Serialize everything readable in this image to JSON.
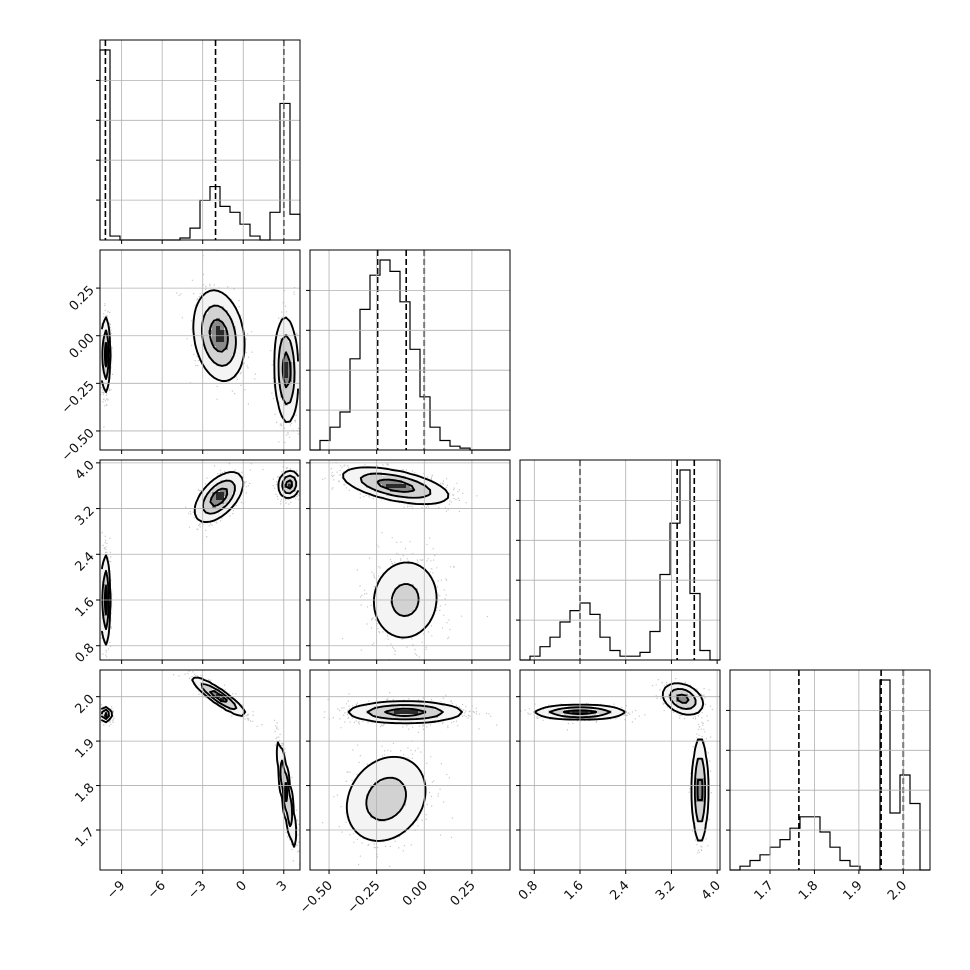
{
  "chart_data": {
    "type": "corner",
    "parameters": [
      {
        "name": "",
        "range": [
          -10.6,
          4.2
        ],
        "ticks": [
          -9,
          -6,
          -3,
          0,
          3
        ],
        "tick_labels": [
          "−9",
          "−6",
          "−3",
          "0",
          "3"
        ]
      },
      {
        "name": "",
        "range": [
          -0.6,
          0.45
        ],
        "ticks": [
          -0.5,
          -0.25,
          0.0,
          0.25
        ],
        "tick_labels": [
          "−0.50",
          "−0.25",
          "0.00",
          "0.25"
        ]
      },
      {
        "name": "",
        "range": [
          0.55,
          4.05
        ],
        "ticks": [
          0.8,
          1.6,
          2.4,
          3.2,
          4.0
        ],
        "tick_labels": [
          "0.8",
          "1.6",
          "2.4",
          "3.2",
          "4.0"
        ]
      },
      {
        "name": "",
        "range": [
          1.61,
          2.06
        ],
        "ticks": [
          1.7,
          1.8,
          1.9,
          2.0
        ],
        "tick_labels": [
          "1.7",
          "1.8",
          "1.9",
          "2.0"
        ]
      }
    ],
    "histograms": [
      {
        "param": 0,
        "bins": [
          -10.6,
          -9.86,
          -9.12,
          -8.38,
          -7.64,
          -6.9,
          -6.16,
          -5.42,
          -4.68,
          -3.94,
          -3.2,
          -2.46,
          -1.72,
          -0.98,
          -0.24,
          0.5,
          1.24,
          1.98,
          2.72,
          3.46,
          4.2
        ],
        "counts": [
          0.96,
          0.02,
          0,
          0,
          0,
          0,
          0,
          0,
          0.01,
          0.06,
          0.2,
          0.27,
          0.17,
          0.14,
          0.08,
          0.02,
          0,
          0.14,
          0.69,
          0.13
        ],
        "quantiles": [
          -10.2,
          -2.05,
          3.0
        ]
      },
      {
        "param": 1,
        "bins": [
          -0.6,
          -0.5475,
          -0.495,
          -0.4425,
          -0.39,
          -0.3375,
          -0.285,
          -0.2325,
          -0.18,
          -0.1275,
          -0.075,
          -0.0225,
          0.03,
          0.0825,
          0.135,
          0.1875,
          0.24,
          0.2925,
          0.345,
          0.3975,
          0.45
        ],
        "counts": [
          0.0,
          0.05,
          0.12,
          0.2,
          0.48,
          0.74,
          0.92,
          1.0,
          0.94,
          0.78,
          0.53,
          0.28,
          0.12,
          0.05,
          0.02,
          0.01,
          0.0,
          0.0,
          0.0,
          0.0
        ],
        "quantiles": [
          -0.245,
          -0.095,
          0.0
        ]
      },
      {
        "param": 2,
        "bins": [
          0.55,
          0.725,
          0.9,
          1.075,
          1.25,
          1.425,
          1.6,
          1.775,
          1.95,
          2.125,
          2.3,
          2.475,
          2.65,
          2.825,
          3.0,
          3.175,
          3.35,
          3.525,
          3.7,
          3.875,
          4.05
        ],
        "counts": [
          0.0,
          0.02,
          0.07,
          0.12,
          0.2,
          0.26,
          0.3,
          0.24,
          0.12,
          0.05,
          0.02,
          0.02,
          0.04,
          0.15,
          0.45,
          0.72,
          1.0,
          0.35,
          0.05,
          0.0
        ],
        "quantiles": [
          1.6,
          3.3,
          3.6
        ]
      },
      {
        "param": 3,
        "bins": [
          1.61,
          1.6325,
          1.655,
          1.6775,
          1.7,
          1.7225,
          1.745,
          1.7675,
          1.79,
          1.8125,
          1.835,
          1.8575,
          1.88,
          1.9025,
          1.925,
          1.9475,
          1.97,
          1.9925,
          2.015,
          2.0375,
          2.06
        ],
        "counts": [
          0.0,
          0.02,
          0.05,
          0.08,
          0.12,
          0.16,
          0.22,
          0.28,
          0.28,
          0.2,
          0.12,
          0.05,
          0.02,
          0.0,
          0.0,
          1.0,
          0.3,
          0.5,
          0.35,
          0.0
        ],
        "quantiles": [
          1.765,
          1.95,
          2.0
        ]
      }
    ],
    "pairs": [
      {
        "x_param": 0,
        "y_param": 1,
        "modes": [
          {
            "cx": -10.2,
            "cy": -0.1,
            "sx": 0.18,
            "sy": 0.1,
            "rho": 0.0,
            "w": 0.33
          },
          {
            "cx": -1.8,
            "cy": 0.0,
            "sx": 0.95,
            "sy": 0.12,
            "rho": -0.2,
            "w": 0.34
          },
          {
            "cx": 3.2,
            "cy": -0.18,
            "sx": 0.45,
            "sy": 0.14,
            "rho": -0.1,
            "w": 0.33
          }
        ]
      },
      {
        "x_param": 0,
        "y_param": 2,
        "modes": [
          {
            "cx": -10.2,
            "cy": 1.6,
            "sx": 0.18,
            "sy": 0.4,
            "rho": 0.0,
            "w": 0.33
          },
          {
            "cx": -1.8,
            "cy": 3.4,
            "sx": 0.9,
            "sy": 0.22,
            "rho": 0.55,
            "w": 0.34
          },
          {
            "cx": 3.4,
            "cy": 3.62,
            "sx": 0.4,
            "sy": 0.12,
            "rho": 0.1,
            "w": 0.33
          }
        ]
      },
      {
        "x_param": 0,
        "y_param": 3,
        "modes": [
          {
            "cx": -10.2,
            "cy": 1.96,
            "sx": 0.22,
            "sy": 0.008,
            "rho": 0.0,
            "w": 0.33
          },
          {
            "cx": -1.8,
            "cy": 2.0,
            "sx": 1.0,
            "sy": 0.022,
            "rho": -0.9,
            "w": 0.34
          },
          {
            "cx": 3.2,
            "cy": 1.78,
            "sx": 0.35,
            "sy": 0.06,
            "rho": -0.85,
            "w": 0.33
          }
        ]
      },
      {
        "x_param": 1,
        "y_param": 2,
        "modes": [
          {
            "cx": -0.15,
            "cy": 3.6,
            "sx": 0.14,
            "sy": 0.16,
            "rho": -0.55,
            "w": 0.65
          },
          {
            "cx": -0.1,
            "cy": 1.6,
            "sx": 0.1,
            "sy": 0.4,
            "rho": 0.05,
            "w": 0.35
          }
        ]
      },
      {
        "x_param": 1,
        "y_param": 3,
        "modes": [
          {
            "cx": -0.1,
            "cy": 1.965,
            "sx": 0.15,
            "sy": 0.012,
            "rho": 0.0,
            "w": 0.62
          },
          {
            "cx": -0.2,
            "cy": 1.77,
            "sx": 0.12,
            "sy": 0.055,
            "rho": 0.2,
            "w": 0.38
          }
        ]
      },
      {
        "x_param": 2,
        "y_param": 3,
        "modes": [
          {
            "cx": 1.6,
            "cy": 1.965,
            "sx": 0.4,
            "sy": 0.008,
            "rho": 0.0,
            "w": 0.35
          },
          {
            "cx": 3.4,
            "cy": 1.995,
            "sx": 0.18,
            "sy": 0.018,
            "rho": -0.3,
            "w": 0.32
          },
          {
            "cx": 3.7,
            "cy": 1.79,
            "sx": 0.07,
            "sy": 0.06,
            "rho": 0.0,
            "w": 0.33
          }
        ]
      }
    ],
    "quantile_line_style": "dashed",
    "grid": true,
    "contour_levels": 3
  }
}
